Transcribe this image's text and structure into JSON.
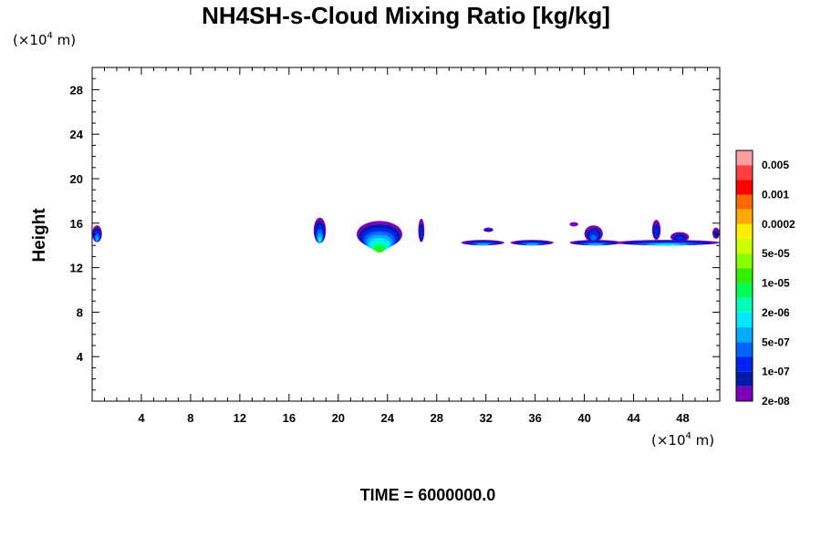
{
  "chart_data": {
    "type": "heatmap",
    "title": "NH4SH-s-Cloud Mixing Ratio [kg/kg]",
    "ylabel": "Height",
    "xunits": {
      "prefix": "(×10",
      "exp": "4",
      "suffix": " m)"
    },
    "yunits": {
      "prefix": "(×10",
      "exp": "4",
      "suffix": " m)"
    },
    "xlim": [
      0,
      51
    ],
    "ylim": [
      0,
      30
    ],
    "x_ticks": [
      "4",
      "8",
      "12",
      "16",
      "20",
      "24",
      "28",
      "32",
      "36",
      "40",
      "44",
      "48"
    ],
    "y_ticks": [
      "4",
      "8",
      "12",
      "16",
      "20",
      "24",
      "28"
    ],
    "colorbar": {
      "labels": [
        "0.005",
        "0.001",
        "0.0002",
        "5e-05",
        "1e-05",
        "2e-06",
        "5e-07",
        "1e-07",
        "2e-08"
      ],
      "colors": [
        "#ff9f9f",
        "#ff4040",
        "#ff0000",
        "#ff6a00",
        "#ffaa00",
        "#ffee00",
        "#ccff00",
        "#88ff00",
        "#33ee00",
        "#00ff55",
        "#00ffbb",
        "#00e8ff",
        "#00aaff",
        "#0066ff",
        "#0022ee",
        "#001aaa",
        "#7b00bb"
      ]
    },
    "regions": [
      {
        "x": [
          0.0,
          0.8
        ],
        "y": [
          14.3,
          15.8
        ],
        "peak": 5
      },
      {
        "x": [
          18.0,
          19.0
        ],
        "y": [
          14.2,
          16.5
        ],
        "peak": 6
      },
      {
        "x": [
          21.5,
          25.2
        ],
        "y": [
          13.8,
          16.2
        ],
        "peak": 9
      },
      {
        "x": [
          26.5,
          27.0
        ],
        "y": [
          14.3,
          16.4
        ],
        "peak": 3
      },
      {
        "x": [
          30.0,
          33.5
        ],
        "y": [
          14.0,
          14.5
        ],
        "peak": 5
      },
      {
        "x": [
          31.8,
          32.6
        ],
        "y": [
          15.2,
          15.6
        ],
        "peak": 2
      },
      {
        "x": [
          34.0,
          37.5
        ],
        "y": [
          14.0,
          14.5
        ],
        "peak": 5
      },
      {
        "x": [
          38.8,
          39.5
        ],
        "y": [
          15.7,
          16.1
        ],
        "peak": 1
      },
      {
        "x": [
          38.8,
          43.0
        ],
        "y": [
          14.0,
          14.5
        ],
        "peak": 5
      },
      {
        "x": [
          40.0,
          41.5
        ],
        "y": [
          14.3,
          15.8
        ],
        "peak": 4
      },
      {
        "x": [
          42.5,
          51.0
        ],
        "y": [
          14.0,
          14.5
        ],
        "peak": 6
      },
      {
        "x": [
          45.5,
          46.2
        ],
        "y": [
          14.5,
          16.3
        ],
        "peak": 3
      },
      {
        "x": [
          47.0,
          48.5
        ],
        "y": [
          14.3,
          15.2
        ],
        "peak": 3
      },
      {
        "x": [
          50.4,
          51.0
        ],
        "y": [
          14.6,
          15.6
        ],
        "peak": 2
      }
    ]
  },
  "time_label": "TIME = 6000000.0"
}
